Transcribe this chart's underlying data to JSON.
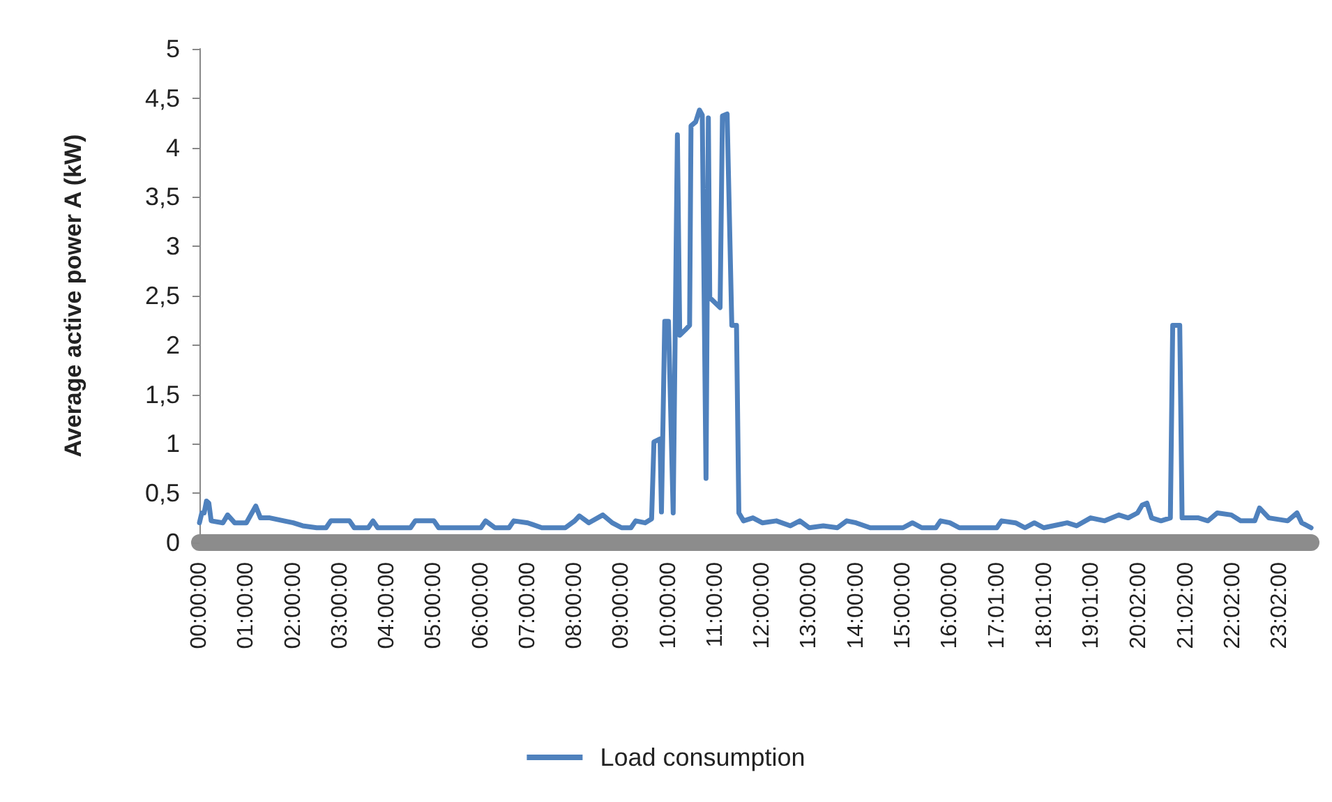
{
  "chart_data": {
    "type": "line",
    "ylabel": "Average active power A (kW)",
    "x": [
      0,
      0.05,
      0.1,
      0.15,
      0.2,
      0.25,
      0.5,
      0.6,
      0.75,
      1.0,
      1.2,
      1.3,
      1.5,
      1.8,
      2.0,
      2.2,
      2.5,
      2.7,
      2.8,
      3.2,
      3.3,
      3.6,
      3.7,
      3.8,
      4.5,
      4.6,
      5.0,
      5.1,
      6.0,
      6.1,
      6.3,
      6.6,
      6.7,
      7.0,
      7.3,
      7.8,
      8.0,
      8.1,
      8.3,
      8.6,
      8.8,
      9.0,
      9.2,
      9.3,
      9.5,
      9.64,
      9.69,
      9.82,
      9.85,
      9.92,
      10.0,
      10.1,
      10.19,
      10.24,
      10.35,
      10.45,
      10.48,
      10.58,
      10.66,
      10.72,
      10.8,
      10.85,
      10.88,
      11.1,
      11.15,
      11.25,
      11.35,
      11.45,
      11.5,
      11.6,
      11.8,
      12.0,
      12.3,
      12.6,
      12.8,
      13.0,
      13.3,
      13.6,
      13.8,
      14.0,
      14.3,
      15.0,
      15.2,
      15.4,
      15.7,
      15.8,
      16.0,
      16.2,
      17.0,
      17.1,
      17.4,
      17.6,
      17.8,
      18.0,
      18.5,
      18.7,
      19.0,
      19.3,
      19.6,
      19.8,
      20.0,
      20.1,
      20.2,
      20.3,
      20.5,
      20.7,
      20.75,
      20.9,
      20.95,
      21.3,
      21.5,
      21.7,
      22.0,
      22.2,
      22.5,
      22.6,
      22.8,
      23.2,
      23.4,
      23.5,
      23.7
    ],
    "series": [
      {
        "name": "Load consumption",
        "color": "#4f81bd",
        "values": [
          0.2,
          0.3,
          0.3,
          0.42,
          0.4,
          0.22,
          0.2,
          0.28,
          0.2,
          0.2,
          0.37,
          0.25,
          0.25,
          0.22,
          0.2,
          0.17,
          0.15,
          0.15,
          0.22,
          0.22,
          0.15,
          0.15,
          0.22,
          0.15,
          0.15,
          0.22,
          0.22,
          0.15,
          0.15,
          0.22,
          0.15,
          0.15,
          0.22,
          0.2,
          0.15,
          0.15,
          0.22,
          0.27,
          0.2,
          0.28,
          0.2,
          0.15,
          0.15,
          0.22,
          0.2,
          0.24,
          1.02,
          1.05,
          0.31,
          2.24,
          2.24,
          0.3,
          4.13,
          2.1,
          2.15,
          2.2,
          4.22,
          4.26,
          4.38,
          4.33,
          0.65,
          4.3,
          2.48,
          2.38,
          4.32,
          4.34,
          2.2,
          2.2,
          0.3,
          0.22,
          0.25,
          0.2,
          0.22,
          0.17,
          0.22,
          0.15,
          0.17,
          0.15,
          0.22,
          0.2,
          0.15,
          0.15,
          0.2,
          0.15,
          0.15,
          0.22,
          0.2,
          0.15,
          0.15,
          0.22,
          0.2,
          0.15,
          0.2,
          0.15,
          0.2,
          0.17,
          0.25,
          0.22,
          0.28,
          0.25,
          0.3,
          0.38,
          0.4,
          0.25,
          0.22,
          0.25,
          2.2,
          2.2,
          0.25,
          0.25,
          0.22,
          0.3,
          0.28,
          0.22,
          0.22,
          0.35,
          0.25,
          0.22,
          0.3,
          0.2,
          0.15
        ]
      }
    ],
    "xlim": [
      0,
      23.7
    ],
    "xticks": [
      {
        "value": 0,
        "label": "00:00:00"
      },
      {
        "value": 1,
        "label": "01:00:00"
      },
      {
        "value": 2,
        "label": "02:00:00"
      },
      {
        "value": 3,
        "label": "03:00:00"
      },
      {
        "value": 4,
        "label": "04:00:00"
      },
      {
        "value": 5,
        "label": "05:00:00"
      },
      {
        "value": 6,
        "label": "06:00:00"
      },
      {
        "value": 7,
        "label": "07:00:00"
      },
      {
        "value": 8,
        "label": "08:00:00"
      },
      {
        "value": 9,
        "label": "09:00:00"
      },
      {
        "value": 10,
        "label": "10:00:00"
      },
      {
        "value": 11,
        "label": "11:00:00"
      },
      {
        "value": 12,
        "label": "12:00:00"
      },
      {
        "value": 13,
        "label": "13:00:00"
      },
      {
        "value": 14,
        "label": "14:00:00"
      },
      {
        "value": 15,
        "label": "15:00:00"
      },
      {
        "value": 16,
        "label": "16:00:00"
      },
      {
        "value": 17.016666666666666,
        "label": "17:01:00"
      },
      {
        "value": 18.016666666666666,
        "label": "18:01:00"
      },
      {
        "value": 19.016666666666666,
        "label": "19:01:00"
      },
      {
        "value": 20.03333333333333,
        "label": "20:02:00"
      },
      {
        "value": 21.03333333333333,
        "label": "21:02:00"
      },
      {
        "value": 22.03333333333333,
        "label": "22:02:00"
      },
      {
        "value": 23.03333333333333,
        "label": "23:02:00"
      }
    ],
    "ylim": [
      0,
      5
    ],
    "yticks": [
      0,
      {
        "value": 0.5,
        "label": "0,5"
      },
      1,
      {
        "value": 1.5,
        "label": "1,5"
      },
      2,
      {
        "value": 2.5,
        "label": "2,5"
      },
      3,
      {
        "value": 3.5,
        "label": "3,5"
      },
      4,
      {
        "value": 4.5,
        "label": "4,5"
      },
      5
    ],
    "grid": false,
    "legend": "bottom",
    "marker": "none",
    "line_style": "solid"
  }
}
